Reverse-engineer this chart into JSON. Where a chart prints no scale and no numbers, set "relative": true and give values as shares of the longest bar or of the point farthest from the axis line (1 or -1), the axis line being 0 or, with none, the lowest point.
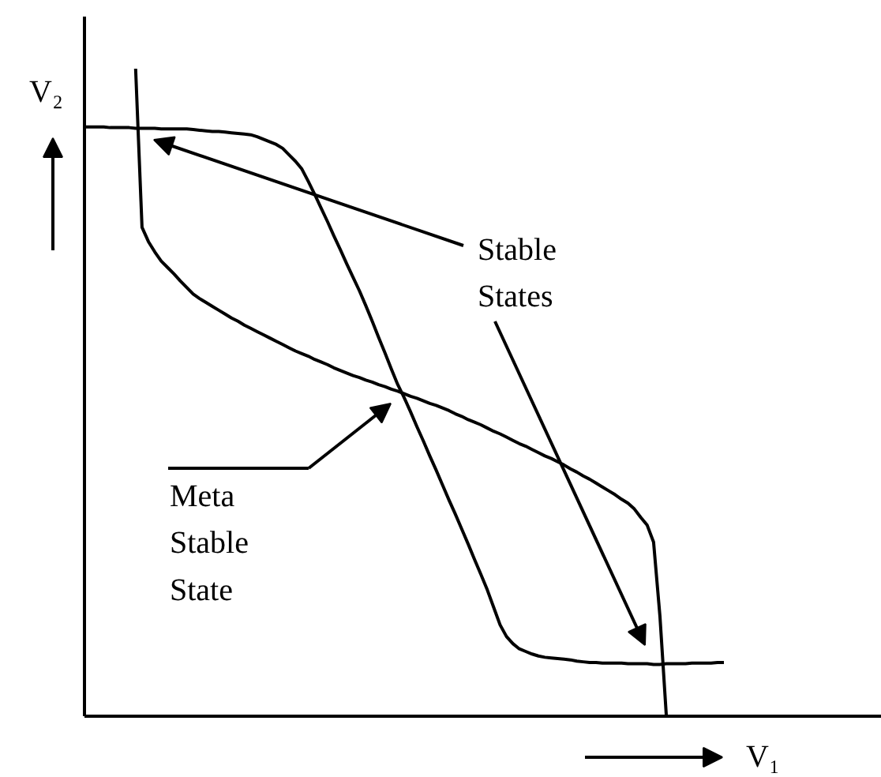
{
  "chart_data": {
    "type": "line",
    "relative": true,
    "xlabel": "V₁",
    "ylabel": "V₂",
    "categories": [
      null,
      null,
      null,
      null,
      null,
      null,
      null,
      null,
      null,
      null,
      null,
      null,
      null,
      null,
      null,
      null,
      null,
      null,
      null,
      null,
      null,
      null,
      null,
      null,
      null,
      null,
      null,
      null,
      null,
      null,
      null,
      null,
      null,
      null,
      null,
      null,
      null,
      null,
      null,
      null,
      null,
      null,
      null,
      null,
      null,
      null,
      null,
      null,
      null,
      null,
      null,
      null,
      null,
      null,
      null,
      null,
      null,
      null,
      null,
      null,
      null,
      null,
      null,
      null,
      null,
      null,
      null,
      null,
      null,
      null,
      null,
      null,
      null,
      null,
      null,
      null,
      null,
      null,
      null,
      null,
      null,
      null,
      null,
      null,
      null,
      null,
      null,
      null,
      null,
      null,
      null,
      null,
      null,
      null,
      null,
      null,
      null,
      null,
      null,
      null,
      null
    ],
    "series": [
      {
        "color": "#000000",
        "values": [
          0.91,
          0.91,
          0.91,
          0.91,
          0.909,
          0.909,
          0.909,
          0.909,
          0.908,
          0.908,
          0.908,
          0.908,
          0.907,
          0.907,
          0.907,
          0.907,
          0.907,
          0.906,
          0.905,
          0.904,
          0.903,
          0.903,
          0.902,
          0.901,
          0.9,
          0.899,
          0.898,
          0.895,
          0.891,
          0.887,
          0.883,
          0.877,
          0.867,
          0.857,
          0.845,
          0.826,
          0.806,
          0.785,
          0.764,
          0.742,
          0.721,
          0.699,
          0.678,
          0.657,
          0.634,
          0.61,
          0.585,
          0.561,
          0.536,
          0.512,
          0.492,
          0.47,
          0.447,
          0.425,
          0.402,
          0.38,
          0.357,
          0.334,
          0.312,
          0.289,
          0.266,
          0.242,
          0.219,
          0.195,
          0.168,
          0.141,
          0.123,
          0.112,
          0.104,
          0.1,
          0.096,
          0.093,
          0.091,
          0.09,
          0.089,
          0.088,
          0.087,
          0.085,
          0.084,
          0.083,
          0.083,
          0.082,
          0.082,
          0.082,
          0.082,
          0.081,
          0.081,
          0.081,
          0.081,
          0.08,
          0.08,
          0.081,
          0.081,
          0.081,
          0.081,
          0.082,
          0.082,
          0.082,
          0.082,
          0.083,
          0.083
        ]
      },
      {
        "color": "#000000",
        "values": [
          null,
          null,
          null,
          null,
          null,
          null,
          null,
          null,
          1.0,
          0.755,
          0.733,
          0.717,
          0.703,
          0.693,
          0.683,
          0.672,
          0.662,
          0.652,
          0.645,
          0.639,
          0.633,
          0.627,
          0.621,
          0.615,
          0.61,
          0.604,
          0.599,
          0.594,
          0.589,
          0.584,
          0.579,
          0.574,
          0.569,
          0.564,
          0.56,
          0.556,
          0.551,
          0.547,
          0.543,
          0.538,
          0.534,
          0.53,
          0.526,
          0.523,
          0.519,
          0.516,
          0.512,
          0.509,
          0.505,
          0.502,
          0.498,
          0.494,
          0.491,
          0.487,
          0.483,
          0.48,
          0.476,
          0.472,
          0.467,
          0.463,
          0.458,
          0.454,
          0.45,
          0.445,
          0.44,
          0.436,
          0.431,
          0.426,
          0.421,
          0.417,
          0.412,
          0.407,
          0.402,
          0.398,
          0.393,
          0.388,
          0.382,
          0.377,
          0.371,
          0.366,
          0.36,
          0.354,
          0.348,
          0.342,
          0.335,
          0.329,
          0.32,
          0.307,
          0.295,
          0.269,
          0.154,
          0,
          null,
          null,
          null,
          null,
          null,
          null,
          null,
          null,
          null
        ]
      }
    ],
    "annotations": [
      "Stable States",
      "Meta Stable State"
    ]
  }
}
